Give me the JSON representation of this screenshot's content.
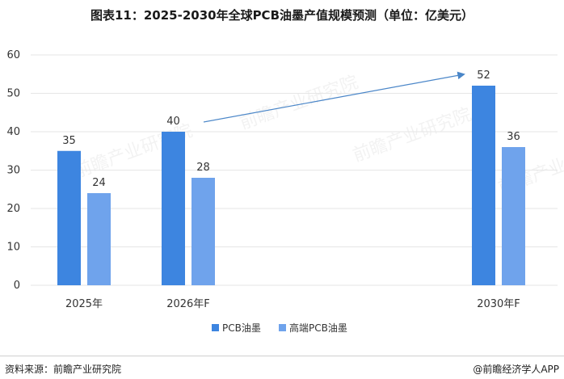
{
  "title": "图表11：2025-2030年全球PCB油墨产值规模预测（单位：亿美元）",
  "source": "资料来源：前瞻产业研究院",
  "brand": "@前瞻经济学人APP",
  "watermark_text": "前瞻产业研究院",
  "colors": {
    "series1": "#3d85e0",
    "series2": "#6fa3ec",
    "arrow": "#4a86c8",
    "grid": "#e6e6e6"
  },
  "chart_data": {
    "type": "bar",
    "categories": [
      "2025年",
      "2026年F",
      "2030年F"
    ],
    "series": [
      {
        "name": "PCB油墨",
        "values": [
          35,
          40,
          52
        ]
      },
      {
        "name": "高端PCB油墨",
        "values": [
          24,
          28,
          36
        ]
      }
    ],
    "data_labels": [
      [
        "35",
        "40",
        "52"
      ],
      [
        "24",
        "28",
        "36"
      ]
    ],
    "y_ticks": [
      "0",
      "10",
      "20",
      "30",
      "40",
      "50",
      "60"
    ],
    "ylim": [
      0,
      60
    ],
    "grid": true,
    "legend": "bottom-center",
    "annotation": "arrow from 2026年F to 2030年F"
  }
}
